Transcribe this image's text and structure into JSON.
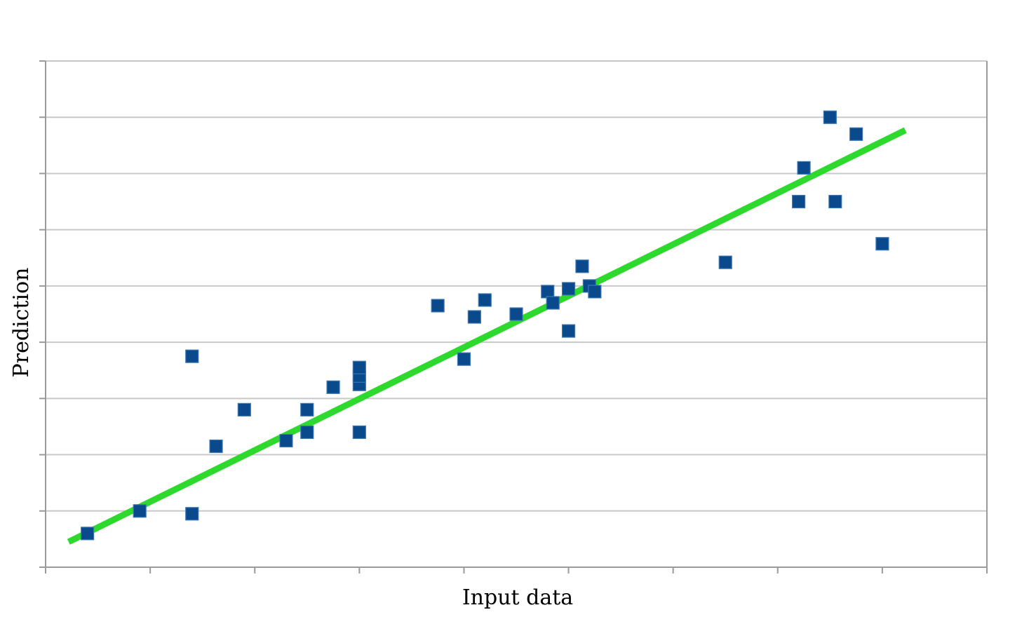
{
  "chart_data": {
    "type": "scatter",
    "title": "",
    "xlabel": "Input data",
    "ylabel": "Prediction",
    "xlim": [
      0,
      9
    ],
    "ylim": [
      0,
      9
    ],
    "grid": "horizontal",
    "legend": "none",
    "tick_labels": "none",
    "colors": {
      "points": "#0a4a8c",
      "trend": "#2ed92e",
      "grid": "#c8c8c8",
      "axis": "#9a9a9a"
    },
    "series": [
      {
        "type": "scatter",
        "marker": "square",
        "x": [
          0.4,
          0.9,
          1.4,
          1.4,
          1.63,
          1.9,
          2.3,
          2.5,
          2.5,
          2.75,
          3.0,
          3.0,
          3.0,
          3.0,
          3.75,
          4.0,
          4.1,
          4.2,
          4.5,
          4.8,
          4.85,
          5.0,
          5.0,
          5.13,
          5.2,
          5.25,
          6.5,
          7.2,
          7.25,
          7.5,
          7.55,
          7.75,
          8.0
        ],
        "y": [
          0.6,
          1.0,
          0.95,
          3.75,
          2.15,
          2.8,
          2.25,
          2.4,
          2.8,
          3.2,
          2.4,
          3.25,
          3.4,
          3.55,
          4.65,
          3.7,
          4.45,
          4.75,
          4.5,
          4.9,
          4.7,
          4.95,
          4.2,
          5.35,
          5.0,
          4.9,
          5.42,
          6.5,
          7.1,
          8.0,
          6.5,
          7.7,
          5.75
        ]
      },
      {
        "type": "line",
        "x": [
          0.22,
          8.22
        ],
        "y": [
          0.45,
          7.77
        ]
      }
    ]
  }
}
